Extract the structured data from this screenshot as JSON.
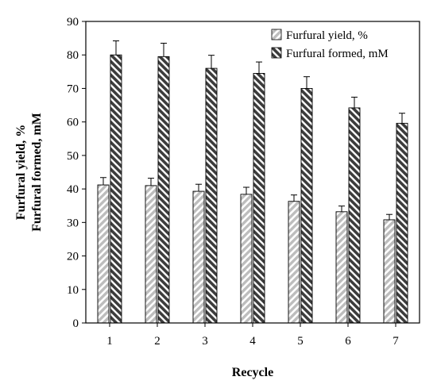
{
  "chart_data": {
    "type": "bar",
    "categories": [
      "1",
      "2",
      "3",
      "4",
      "5",
      "6",
      "7"
    ],
    "series": [
      {
        "name": "Furfural yield, %",
        "values": [
          41.2,
          41.0,
          39.3,
          38.4,
          36.3,
          33.2,
          30.8
        ],
        "errors": [
          2.2,
          2.2,
          2.1,
          2.1,
          1.9,
          1.7,
          1.6
        ],
        "pattern": "light-diagonal"
      },
      {
        "name": "Furfural formed, mM",
        "values": [
          80.0,
          79.5,
          76.0,
          74.5,
          70.0,
          64.2,
          59.6
        ],
        "errors": [
          4.2,
          4.0,
          3.9,
          3.4,
          3.5,
          3.2,
          3.0
        ],
        "pattern": "dark-diagonal"
      }
    ],
    "xlabel": "Recycle",
    "ylabel_line1": "Furfural yield, %",
    "ylabel_line2": "Furfural formed, mM",
    "ylim": [
      0,
      90
    ],
    "yticks": [
      0,
      10,
      20,
      30,
      40,
      50,
      60,
      70,
      80,
      90
    ],
    "grid": false,
    "legend_position": "top-right"
  }
}
